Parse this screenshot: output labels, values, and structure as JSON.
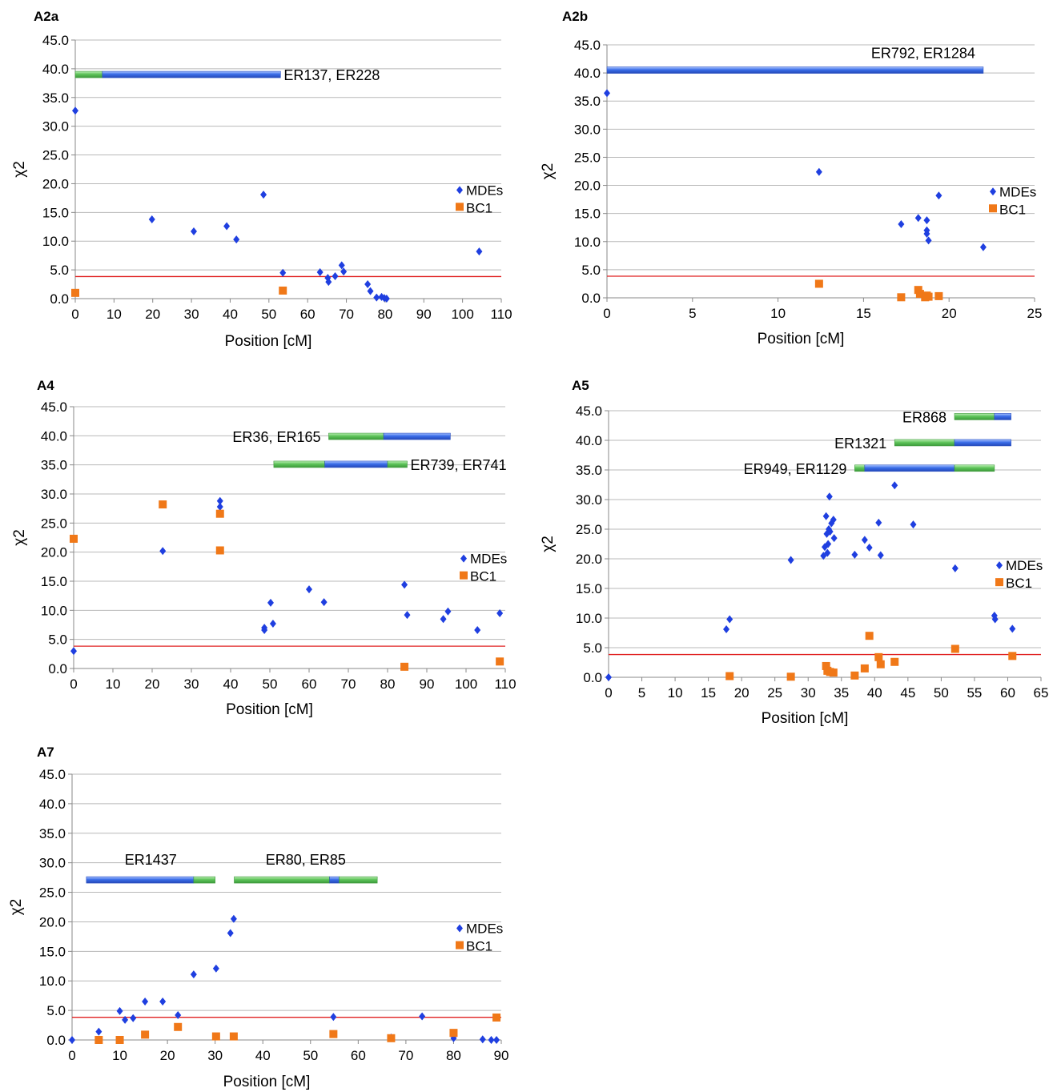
{
  "legend_labels": {
    "mdes": "MDEs",
    "bc1": "BC1"
  },
  "colors": {
    "mdes": "#1f3fe0",
    "bc1": "#f07818",
    "threshold": "#e02020",
    "grid": "#b8b8b8",
    "bar_blue": "#3a6de8",
    "bar_green": "#5ec45a"
  },
  "chart_data": [
    {
      "type": "scatter",
      "panel_title": "A2a",
      "xlabel": "Position [cM]",
      "ylabel": "χ2",
      "xlim": [
        0,
        110
      ],
      "xstep": 10,
      "ylim": [
        0,
        45
      ],
      "ystep": 5,
      "grid": true,
      "legend_position": "right",
      "threshold": 3.84,
      "series": [
        {
          "name": "MDEs",
          "points": [
            [
              0,
              32.7
            ],
            [
              19.8,
              13.8
            ],
            [
              30.6,
              11.7
            ],
            [
              39.1,
              12.6
            ],
            [
              41.6,
              10.3
            ],
            [
              48.6,
              18.1
            ],
            [
              53.6,
              4.5
            ],
            [
              63.2,
              4.6
            ],
            [
              65.2,
              3.6
            ],
            [
              65.4,
              2.9
            ],
            [
              67.1,
              3.9
            ],
            [
              68.8,
              5.8
            ],
            [
              69.3,
              4.7
            ],
            [
              75.5,
              2.5
            ],
            [
              76.2,
              1.3
            ],
            [
              77.8,
              0.2
            ],
            [
              79.1,
              0.3
            ],
            [
              79.8,
              0.1
            ],
            [
              80.4,
              0.0
            ],
            [
              104.3,
              8.2
            ]
          ]
        },
        {
          "name": "BC1",
          "points": [
            [
              0,
              1.0
            ],
            [
              53.6,
              1.4
            ]
          ]
        }
      ],
      "regions": [
        {
          "label": "ER137, ER228",
          "segments": [
            {
              "color": "green",
              "x0": 0,
              "x1": 7
            },
            {
              "color": "blue",
              "x0": 7,
              "x1": 53
            }
          ],
          "y": 39.0,
          "label_side": "right"
        }
      ]
    },
    {
      "type": "scatter",
      "panel_title": "A2b",
      "xlabel": "Position [cM]",
      "ylabel": "χ2",
      "xlim": [
        0,
        25
      ],
      "xstep": 5,
      "ylim": [
        0,
        45
      ],
      "ystep": 5,
      "grid": true,
      "legend_position": "right",
      "threshold": 3.84,
      "series": [
        {
          "name": "MDEs",
          "points": [
            [
              0,
              36.4
            ],
            [
              12.4,
              22.4
            ],
            [
              17.2,
              13.1
            ],
            [
              18.2,
              14.2
            ],
            [
              18.7,
              13.8
            ],
            [
              18.7,
              12.0
            ],
            [
              18.7,
              11.4
            ],
            [
              18.8,
              10.2
            ],
            [
              19.4,
              18.2
            ],
            [
              22.0,
              9.0
            ]
          ]
        },
        {
          "name": "BC1",
          "points": [
            [
              12.4,
              2.5
            ],
            [
              17.2,
              0.1
            ],
            [
              18.2,
              1.4
            ],
            [
              18.3,
              0.7
            ],
            [
              18.6,
              0.1
            ],
            [
              18.7,
              0.4
            ],
            [
              18.8,
              0.2
            ],
            [
              19.4,
              0.3
            ]
          ]
        }
      ],
      "regions": [
        {
          "label": "ER792, ER1284",
          "segments": [
            {
              "color": "blue",
              "x0": 0,
              "x1": 22.0
            }
          ],
          "y": 40.5,
          "label_side": "above-right"
        }
      ]
    },
    {
      "type": "scatter",
      "panel_title": "A4",
      "xlabel": "Position [cM]",
      "ylabel": "χ2",
      "xlim": [
        0,
        110
      ],
      "xstep": 10,
      "ylim": [
        0,
        45
      ],
      "ystep": 5,
      "grid": true,
      "legend_position": "right",
      "threshold": 3.84,
      "series": [
        {
          "name": "MDEs",
          "points": [
            [
              0,
              3.0
            ],
            [
              22.7,
              20.2
            ],
            [
              37.3,
              28.8
            ],
            [
              37.3,
              27.8
            ],
            [
              48.6,
              7.0
            ],
            [
              48.6,
              6.6
            ],
            [
              50.2,
              11.3
            ],
            [
              50.8,
              7.7
            ],
            [
              60.0,
              13.6
            ],
            [
              63.8,
              11.4
            ],
            [
              84.3,
              14.4
            ],
            [
              85.0,
              9.2
            ],
            [
              94.2,
              8.5
            ],
            [
              95.4,
              9.8
            ],
            [
              102.9,
              6.6
            ],
            [
              108.6,
              9.5
            ]
          ]
        },
        {
          "name": "BC1",
          "points": [
            [
              0,
              22.3
            ],
            [
              22.7,
              28.2
            ],
            [
              37.3,
              26.6
            ],
            [
              37.3,
              20.3
            ],
            [
              84.3,
              0.3
            ],
            [
              108.6,
              1.2
            ]
          ]
        }
      ],
      "regions": [
        {
          "label": "ER36, ER165",
          "segments": [
            {
              "color": "green",
              "x0": 65,
              "x1": 79
            },
            {
              "color": "blue",
              "x0": 79,
              "x1": 96
            }
          ],
          "y": 39.9,
          "label_side": "left"
        },
        {
          "label": "ER739, ER741",
          "segments": [
            {
              "color": "green",
              "x0": 51,
              "x1": 64
            },
            {
              "color": "blue",
              "x0": 64,
              "x1": 80
            },
            {
              "color": "green",
              "x0": 80,
              "x1": 85
            }
          ],
          "y": 35.1,
          "label_side": "right"
        }
      ]
    },
    {
      "type": "scatter",
      "panel_title": "A5",
      "xlabel": "Position [cM]",
      "ylabel": "χ2",
      "xlim": [
        0,
        65
      ],
      "xstep": 5,
      "ylim": [
        0,
        45
      ],
      "ystep": 5,
      "grid": true,
      "legend_position": "right",
      "threshold": 3.84,
      "series": [
        {
          "name": "MDEs",
          "points": [
            [
              0,
              0.0
            ],
            [
              17.7,
              8.1
            ],
            [
              18.2,
              9.8
            ],
            [
              27.4,
              19.8
            ],
            [
              32.3,
              20.5
            ],
            [
              32.5,
              22.0
            ],
            [
              32.7,
              27.2
            ],
            [
              32.8,
              24.2
            ],
            [
              32.9,
              21.0
            ],
            [
              33.0,
              22.5
            ],
            [
              33.1,
              25.0
            ],
            [
              33.2,
              30.5
            ],
            [
              33.3,
              24.6
            ],
            [
              33.5,
              26.0
            ],
            [
              33.8,
              26.6
            ],
            [
              33.9,
              23.5
            ],
            [
              37.0,
              20.7
            ],
            [
              38.5,
              23.2
            ],
            [
              39.2,
              21.9
            ],
            [
              40.6,
              26.1
            ],
            [
              40.9,
              20.6
            ],
            [
              43.0,
              32.4
            ],
            [
              45.8,
              25.8
            ],
            [
              52.1,
              18.4
            ],
            [
              58.0,
              10.4
            ],
            [
              58.1,
              9.8
            ],
            [
              60.7,
              8.2
            ]
          ]
        },
        {
          "name": "BC1",
          "points": [
            [
              18.2,
              0.2
            ],
            [
              27.4,
              0.1
            ],
            [
              32.7,
              1.9
            ],
            [
              32.9,
              1.1
            ],
            [
              33.3,
              0.9
            ],
            [
              33.8,
              0.8
            ],
            [
              37.0,
              0.3
            ],
            [
              38.5,
              1.5
            ],
            [
              39.2,
              7.0
            ],
            [
              40.6,
              3.4
            ],
            [
              40.9,
              2.2
            ],
            [
              43.0,
              2.6
            ],
            [
              52.1,
              4.8
            ],
            [
              60.7,
              3.6
            ]
          ]
        }
      ],
      "regions": [
        {
          "label": "ER868",
          "segments": [
            {
              "color": "green",
              "x0": 52,
              "x1": 58
            },
            {
              "color": "blue",
              "x0": 58,
              "x1": 60.5
            }
          ],
          "y": 44.0,
          "label_side": "left"
        },
        {
          "label": "ER1321",
          "segments": [
            {
              "color": "green",
              "x0": 43,
              "x1": 52
            },
            {
              "color": "blue",
              "x0": 52,
              "x1": 60.5
            }
          ],
          "y": 39.6,
          "label_side": "left"
        },
        {
          "label": "ER949, ER1129",
          "segments": [
            {
              "color": "green",
              "x0": 37,
              "x1": 38.5
            },
            {
              "color": "blue",
              "x0": 38.5,
              "x1": 52
            },
            {
              "color": "green",
              "x0": 52,
              "x1": 58
            }
          ],
          "y": 35.3,
          "label_side": "left"
        }
      ]
    },
    {
      "type": "scatter",
      "panel_title": "A7",
      "xlabel": "Position [cM]",
      "ylabel": "χ2",
      "xlim": [
        0,
        90
      ],
      "xstep": 10,
      "ylim": [
        0,
        45
      ],
      "ystep": 5,
      "grid": true,
      "legend_position": "right",
      "threshold": 3.84,
      "series": [
        {
          "name": "MDEs",
          "points": [
            [
              0,
              0.0
            ],
            [
              5.6,
              1.4
            ],
            [
              10.0,
              4.9
            ],
            [
              11.1,
              3.4
            ],
            [
              12.8,
              3.7
            ],
            [
              15.3,
              6.5
            ],
            [
              19.0,
              6.5
            ],
            [
              22.2,
              4.2
            ],
            [
              25.5,
              11.1
            ],
            [
              30.2,
              12.1
            ],
            [
              33.2,
              18.1
            ],
            [
              33.9,
              20.5
            ],
            [
              54.8,
              3.9
            ],
            [
              66.9,
              0.4
            ],
            [
              73.4,
              4.0
            ],
            [
              80.0,
              0.3
            ],
            [
              86.1,
              0.1
            ],
            [
              87.9,
              0.0
            ],
            [
              89.0,
              0.0
            ]
          ]
        },
        {
          "name": "BC1",
          "points": [
            [
              5.6,
              0.0
            ],
            [
              10.0,
              0.0
            ],
            [
              15.3,
              0.9
            ],
            [
              22.2,
              2.2
            ],
            [
              30.2,
              0.6
            ],
            [
              33.9,
              0.6
            ],
            [
              54.8,
              1.0
            ],
            [
              66.9,
              0.3
            ],
            [
              80.0,
              1.2
            ],
            [
              89.0,
              3.8
            ]
          ]
        }
      ],
      "regions": [
        {
          "label": "ER1437",
          "segments": [
            {
              "color": "blue",
              "x0": 3,
              "x1": 25.5
            },
            {
              "color": "green",
              "x0": 25.5,
              "x1": 30
            }
          ],
          "y": 27.1,
          "label_side": "above"
        },
        {
          "label": "ER80, ER85",
          "segments": [
            {
              "color": "green",
              "x0": 34,
              "x1": 54
            },
            {
              "color": "blue",
              "x0": 54,
              "x1": 56
            },
            {
              "color": "green",
              "x0": 56,
              "x1": 64
            }
          ],
          "y": 27.1,
          "label_side": "above"
        }
      ]
    }
  ]
}
